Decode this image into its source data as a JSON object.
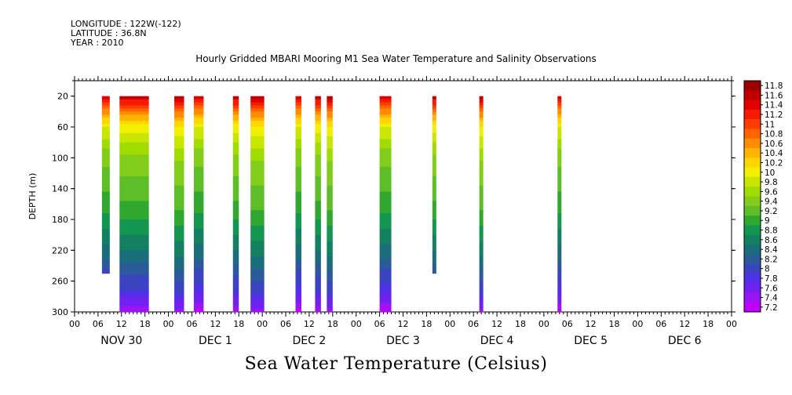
{
  "header": {
    "longitude": "LONGITUDE : 122W(-122)",
    "latitude": "LATITUDE : 36.8N",
    "year": "YEAR : 2010"
  },
  "chart_data": {
    "type": "heatmap",
    "title": "Hourly Gridded MBARI Mooring M1 Sea Water Temperature and Salinity Observations",
    "bottom_title": "Sea Water Temperature (Celsius)",
    "ylabel": "DEPTH (m)",
    "xlabel": "",
    "ylim": [
      300,
      0
    ],
    "y_ticks": [
      20,
      60,
      100,
      140,
      180,
      220,
      260,
      300
    ],
    "x_range_hours": [
      0,
      168
    ],
    "hour_ticks": [
      "00",
      "06",
      "12",
      "18",
      "00",
      "06",
      "12",
      "18",
      "00",
      "06",
      "12",
      "18",
      "00",
      "06",
      "12",
      "18",
      "00",
      "06",
      "12",
      "18",
      "00",
      "06",
      "12",
      "18",
      "00",
      "06",
      "12",
      "18",
      "00"
    ],
    "day_labels": [
      "NOV 30",
      "DEC 1",
      "DEC 2",
      "DEC 3",
      "DEC 4",
      "DEC 5",
      "DEC 6"
    ],
    "colorbar": {
      "levels": [
        "11.8",
        "11.6",
        "11.4",
        "11.2",
        "11",
        "10.8",
        "10.6",
        "10.4",
        "10.2",
        "10",
        "9.8",
        "9.6",
        "9.4",
        "9.2",
        "9",
        "8.8",
        "8.6",
        "8.4",
        "8.2",
        "8",
        "7.8",
        "7.6",
        "7.4",
        "7.2"
      ],
      "colors": [
        "#9b0000",
        "#c00000",
        "#e00000",
        "#f51a00",
        "#ff3c00",
        "#ff6400",
        "#ff8c00",
        "#ffb400",
        "#ffd600",
        "#f0f000",
        "#c8e600",
        "#a0dc00",
        "#82cc1a",
        "#5ebe28",
        "#30a830",
        "#129650",
        "#138060",
        "#1a6e7c",
        "#2a5a9a",
        "#3a44c0",
        "#5030e6",
        "#7020f0",
        "#9a14f4",
        "#c000ff"
      ]
    },
    "columns": [
      {
        "start": 7,
        "end": 9,
        "max_depth": 250
      },
      {
        "start": 11.5,
        "end": 19,
        "max_depth": 300
      },
      {
        "start": 25.5,
        "end": 28,
        "max_depth": 300
      },
      {
        "start": 30.5,
        "end": 33,
        "max_depth": 300
      },
      {
        "start": 40.5,
        "end": 42,
        "max_depth": 300
      },
      {
        "start": 45,
        "end": 48.5,
        "max_depth": 300
      },
      {
        "start": 56.5,
        "end": 58,
        "max_depth": 300
      },
      {
        "start": 61.5,
        "end": 63,
        "max_depth": 300
      },
      {
        "start": 64.5,
        "end": 66,
        "max_depth": 300
      },
      {
        "start": 78,
        "end": 81,
        "max_depth": 300
      },
      {
        "start": 91.5,
        "end": 92.5,
        "max_depth": 250
      },
      {
        "start": 103.5,
        "end": 104.5,
        "max_depth": 300
      },
      {
        "start": 123.5,
        "end": 124.5,
        "max_depth": 300
      }
    ],
    "temperature_profile": [
      {
        "depth": 20,
        "temp": 11.6
      },
      {
        "depth": 30,
        "temp": 11.1
      },
      {
        "depth": 45,
        "temp": 10.5
      },
      {
        "depth": 60,
        "temp": 10.0
      },
      {
        "depth": 80,
        "temp": 9.7
      },
      {
        "depth": 100,
        "temp": 9.45
      },
      {
        "depth": 140,
        "temp": 9.2
      },
      {
        "depth": 170,
        "temp": 9.0
      },
      {
        "depth": 200,
        "temp": 8.7
      },
      {
        "depth": 230,
        "temp": 8.4
      },
      {
        "depth": 250,
        "temp": 8.1
      },
      {
        "depth": 270,
        "temp": 7.9
      },
      {
        "depth": 285,
        "temp": 7.6
      },
      {
        "depth": 300,
        "temp": 7.3
      }
    ]
  }
}
